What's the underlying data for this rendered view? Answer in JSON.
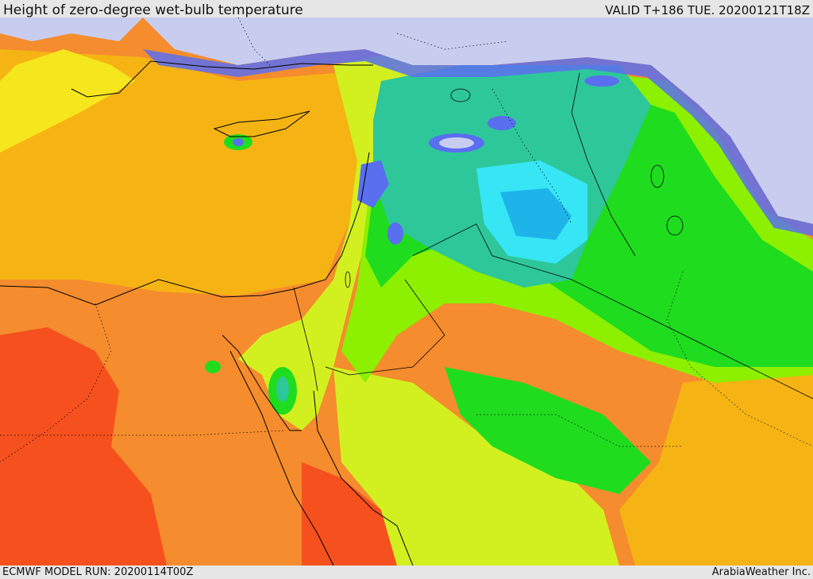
{
  "header": {
    "title": "Height of zero-degree wet-bulb temperature",
    "valid": "VALID T+186 TUE. 20200121T18Z"
  },
  "footer": {
    "model_run": "ECMWF MODEL RUN: 20200114T00Z",
    "credit": "ArabiaWeather Inc."
  },
  "palette": {
    "very_low": "#c8cdf0",
    "low_blue": "#5a6ef0",
    "cyan": "#36e6f5",
    "sky_blue": "#1eb4ea",
    "teal": "#2ec79a",
    "green": "#1fdc1f",
    "light_green": "#8cf000",
    "yellow_green": "#d2f020",
    "yellow": "#f5e61e",
    "orange_yellow": "#f5b414",
    "orange": "#f58c2d",
    "red_orange": "#f5501e",
    "boundary_line": "#000000"
  }
}
